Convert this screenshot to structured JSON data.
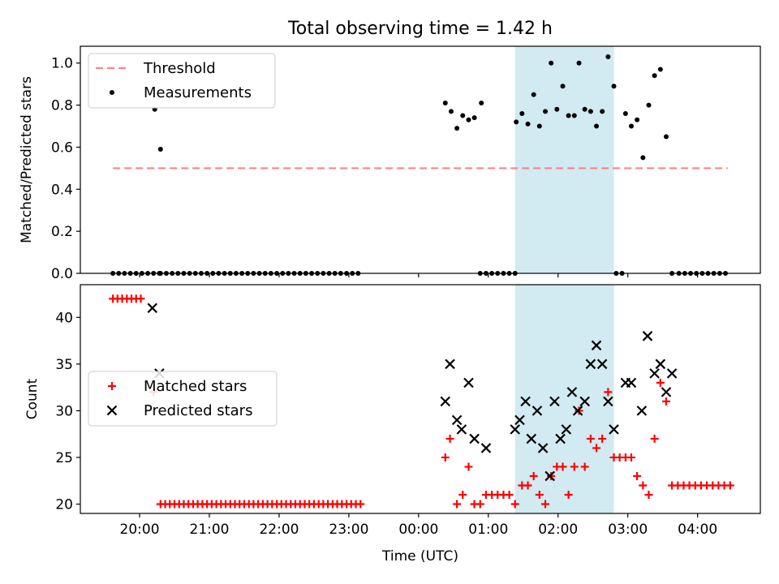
{
  "chart_data": [
    {
      "type": "scatter",
      "title": "Total observing time = 1.42 h",
      "ylabel": "Matched/Predicted stars",
      "ylim": [
        0,
        1.08
      ],
      "yticks": [
        "0.0",
        "0.2",
        "0.4",
        "0.6",
        "0.8",
        "1.0"
      ],
      "highlight": {
        "x_start": 1.383,
        "x_end": 2.8,
        "color": "#add8e6"
      },
      "series": [
        {
          "name": "Threshold",
          "kind": "line",
          "color": "#ff7f7f",
          "x": [
            -4.383,
            4.433
          ],
          "y": [
            0.5,
            0.5
          ]
        },
        {
          "name": "Measurements",
          "kind": "dot",
          "color": "#000000",
          "x": [
            -4.383,
            -4.3,
            -4.217,
            -4.133,
            -4.05,
            -3.967,
            -3.883,
            -3.8,
            -3.717,
            -3.7,
            -3.617,
            -3.533,
            -3.45,
            -3.367,
            -3.283,
            -3.2,
            -3.117,
            -3.033,
            -2.95,
            -2.867,
            -2.783,
            -2.7,
            -2.617,
            -2.533,
            -2.45,
            -2.367,
            -2.283,
            -2.2,
            -2.117,
            -2.033,
            -1.95,
            -1.867,
            -1.783,
            -1.7,
            -1.617,
            -1.533,
            -1.45,
            -1.367,
            -1.283,
            -1.2,
            -1.117,
            -1.033,
            -0.95,
            -0.867,
            0.383,
            0.467,
            0.55,
            0.633,
            0.717,
            0.8,
            0.9,
            0.883,
            0.967,
            1.05,
            1.133,
            1.217,
            1.3,
            1.383,
            1.4,
            1.483,
            1.567,
            1.65,
            1.733,
            1.817,
            1.9,
            1.983,
            2.067,
            2.15,
            2.233,
            2.3,
            2.383,
            2.467,
            2.55,
            2.633,
            2.717,
            2.8,
            2.967,
            3.05,
            3.133,
            3.217,
            3.3,
            3.383,
            3.467,
            3.55,
            3.633,
            2.833,
            2.917,
            3.733,
            3.817,
            3.9,
            3.983,
            4.067,
            4.15,
            4.233,
            4.317,
            4.4,
            -3.783,
            -3.7
          ],
          "y": [
            0,
            0,
            0,
            0,
            0,
            0,
            0,
            0,
            0,
            0,
            0,
            0,
            0,
            0,
            0,
            0,
            0,
            0,
            0,
            0,
            0,
            0,
            0,
            0,
            0,
            0,
            0,
            0,
            0,
            0,
            0,
            0,
            0,
            0,
            0,
            0,
            0,
            0,
            0,
            0,
            0,
            0,
            0,
            0,
            0.81,
            0.77,
            0.69,
            0.75,
            0.73,
            0.74,
            0.81,
            0,
            0,
            0,
            0,
            0,
            0,
            0,
            0.72,
            0.76,
            0.71,
            0.85,
            0.7,
            0.77,
            1.0,
            0.78,
            0.89,
            0.75,
            0.75,
            1.0,
            0.78,
            0.77,
            0.7,
            0.77,
            1.03,
            0.89,
            0.76,
            0.7,
            0.73,
            0.55,
            0.8,
            0.94,
            0.97,
            0.65,
            0,
            0,
            0,
            0,
            0,
            0,
            0,
            0,
            0,
            0,
            0,
            0,
            0.78,
            0.59
          ]
        }
      ],
      "legend": "top-left"
    },
    {
      "type": "scatter",
      "ylabel": "Count",
      "xlabel": "Time (UTC)",
      "ylim": [
        19,
        43.5
      ],
      "yticks": [
        "20",
        "25",
        "30",
        "35",
        "40"
      ],
      "xticks": [
        "20:00",
        "21:00",
        "22:00",
        "23:00",
        "00:00",
        "01:00",
        "02:00",
        "03:00",
        "04:00"
      ],
      "xtick_hours": [
        -4,
        -3,
        -2,
        -1,
        0,
        1,
        2,
        3,
        4
      ],
      "xlim": [
        -4.85,
        4.9
      ],
      "highlight": {
        "x_start": 1.383,
        "x_end": 2.8,
        "color": "#add8e6"
      },
      "series": [
        {
          "name": "Matched stars",
          "kind": "plus",
          "color": "#ff0000",
          "x": [
            -4.383,
            -4.317,
            -4.25,
            -4.183,
            -4.117,
            -4.05,
            -3.983,
            -3.8,
            -3.7,
            -3.633,
            -3.567,
            -3.5,
            -3.433,
            -3.367,
            -3.3,
            -3.233,
            -3.167,
            -3.1,
            -3.033,
            -2.967,
            -2.9,
            -2.833,
            -2.767,
            -2.7,
            -2.633,
            -2.567,
            -2.5,
            -2.433,
            -2.367,
            -2.3,
            -2.233,
            -2.167,
            -2.1,
            -2.033,
            -1.967,
            -1.9,
            -1.833,
            -1.767,
            -1.7,
            -1.633,
            -1.567,
            -1.5,
            -1.433,
            -1.367,
            -1.3,
            -1.233,
            -1.167,
            -1.1,
            -1.033,
            -0.967,
            -0.9,
            -0.833,
            0.383,
            0.45,
            0.55,
            0.633,
            0.717,
            0.8,
            0.883,
            0.967,
            1.05,
            1.133,
            1.217,
            1.3,
            1.383,
            1.483,
            1.567,
            1.65,
            1.733,
            1.817,
            1.9,
            1.983,
            2.067,
            2.15,
            2.233,
            2.3,
            2.383,
            2.467,
            2.55,
            2.633,
            2.717,
            2.8,
            2.883,
            2.967,
            3.05,
            3.133,
            3.217,
            3.3,
            3.383,
            3.467,
            3.55,
            3.633,
            3.717,
            3.8,
            3.883,
            3.967,
            4.05,
            4.133,
            4.217,
            4.3,
            4.383,
            4.467
          ],
          "y": [
            42,
            42,
            42,
            42,
            42,
            42,
            42,
            32,
            20,
            20,
            20,
            20,
            20,
            20,
            20,
            20,
            20,
            20,
            20,
            20,
            20,
            20,
            20,
            20,
            20,
            20,
            20,
            20,
            20,
            20,
            20,
            20,
            20,
            20,
            20,
            20,
            20,
            20,
            20,
            20,
            20,
            20,
            20,
            20,
            20,
            20,
            20,
            20,
            20,
            20,
            20,
            20,
            25,
            27,
            20,
            21,
            24,
            20,
            20,
            21,
            21,
            21,
            21,
            21,
            20,
            22,
            22,
            23,
            21,
            20,
            23,
            24,
            24,
            21,
            24,
            30,
            24,
            27,
            26,
            27,
            32,
            25,
            25,
            25,
            25,
            23,
            22,
            21,
            27,
            33,
            31,
            22,
            22,
            22,
            22,
            22,
            22,
            22,
            22,
            22,
            22,
            22
          ]
        },
        {
          "name": "Predicted stars",
          "kind": "cross",
          "color": "#000000",
          "x": [
            -3.817,
            -3.717,
            0.383,
            0.45,
            0.55,
            0.617,
            0.717,
            0.8,
            0.967,
            1.383,
            1.45,
            1.533,
            1.617,
            1.7,
            1.783,
            1.883,
            1.95,
            2.033,
            2.117,
            2.2,
            2.283,
            2.383,
            2.467,
            2.55,
            2.633,
            2.717,
            2.8,
            2.967,
            3.05,
            3.2,
            3.283,
            3.383,
            3.467,
            3.55,
            3.633
          ],
          "y": [
            41,
            34,
            31,
            35,
            29,
            28,
            33,
            27,
            26,
            28,
            29,
            31,
            27,
            30,
            26,
            23,
            31,
            27,
            28,
            32,
            30,
            31,
            35,
            37,
            35,
            31,
            28,
            33,
            33,
            30,
            38,
            34,
            35,
            32,
            34
          ]
        }
      ],
      "legend": "center-left"
    }
  ]
}
